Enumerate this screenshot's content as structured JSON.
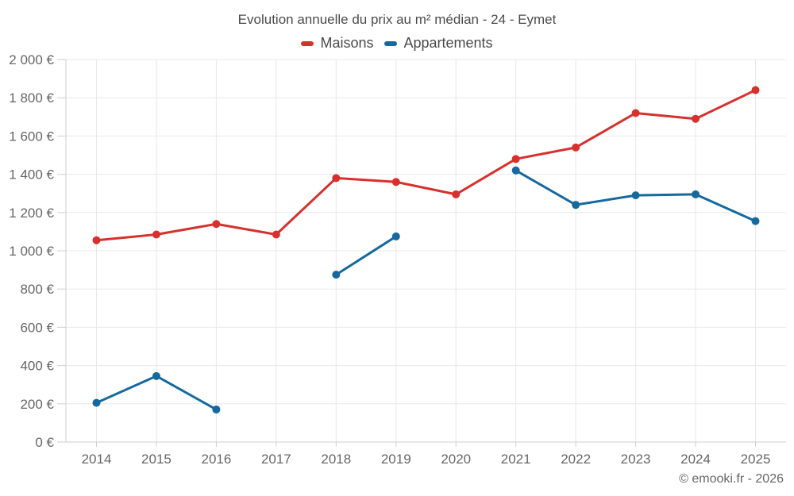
{
  "header": {
    "title": "Evolution annuelle du prix au m² médian - 24 - Eymet"
  },
  "footer": {
    "text": "© emooki.fr - 2026"
  },
  "colors": {
    "maisons": "#d7312e",
    "appartements": "#15699e",
    "grid": "#e8e8e8",
    "axis": "#cfcfcf",
    "tick_text": "#666666",
    "title_text": "#4b4b4b"
  },
  "chart_data": {
    "type": "line",
    "title": "Evolution annuelle du prix au m² médian - 24 - Eymet",
    "xlabel": "",
    "ylabel": "",
    "categories": [
      "2014",
      "2015",
      "2016",
      "2017",
      "2018",
      "2019",
      "2020",
      "2021",
      "2022",
      "2023",
      "2024",
      "2025"
    ],
    "series": [
      {
        "name": "Maisons",
        "color": "#d7312e",
        "values": [
          1055,
          1085,
          1140,
          1085,
          1380,
          1360,
          1295,
          1480,
          1540,
          1720,
          1690,
          1840
        ]
      },
      {
        "name": "Appartements",
        "color": "#15699e",
        "values": [
          205,
          345,
          170,
          null,
          875,
          1075,
          null,
          1420,
          1240,
          1290,
          1295,
          1155
        ]
      }
    ],
    "ylim": [
      0,
      2000
    ],
    "y_tick_step": 200,
    "y_tick_labels": [
      "0 €",
      "200 €",
      "400 €",
      "600 €",
      "800 €",
      "1 000 €",
      "1 200 €",
      "1 400 €",
      "1 600 €",
      "1 800 €",
      "2 000 €"
    ],
    "grid": true,
    "legend_position": "top",
    "currency": "€"
  }
}
